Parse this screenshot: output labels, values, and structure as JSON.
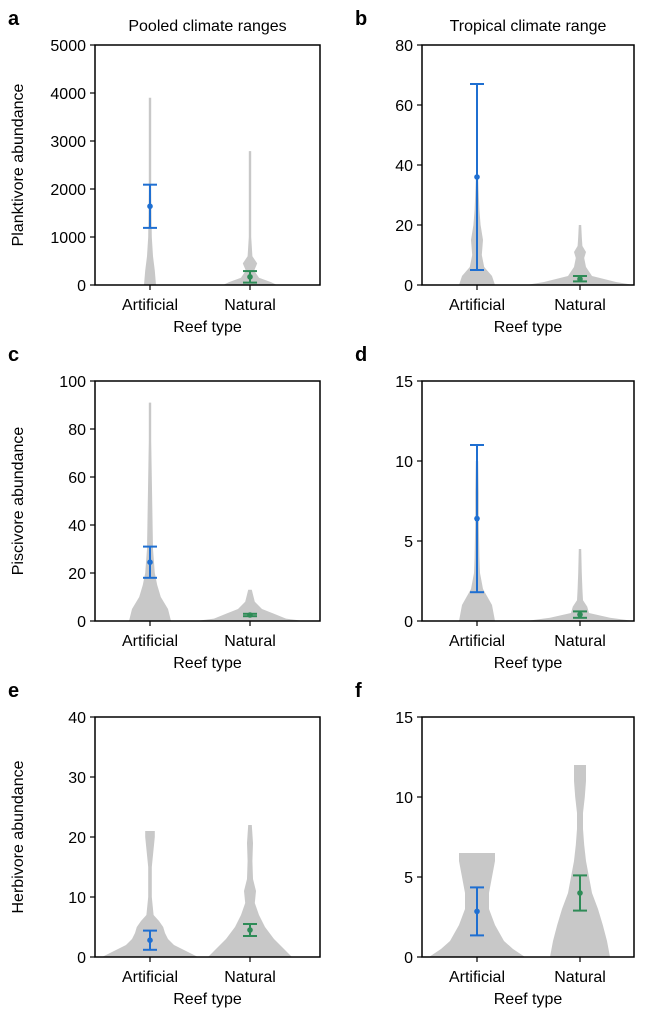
{
  "colors": {
    "artificial": "#1f6fd1",
    "natural": "#2e8b57",
    "violin": "#c8c8c8",
    "axis": "#000000"
  },
  "chart_data": [
    {
      "type": "violin",
      "panel_label": "a",
      "title": "Pooled climate ranges",
      "xlabel": "Reef type",
      "ylabel": "Planktivore abundance",
      "categories": [
        "Artificial",
        "Natural"
      ],
      "ylim": [
        0,
        5000
      ],
      "yticks": [
        "0",
        "1000",
        "2000",
        "3000",
        "4000",
        "5000"
      ],
      "ytick_values": [
        0,
        1000,
        2000,
        3000,
        4000,
        5000
      ],
      "series": [
        {
          "category": "Artificial",
          "color_key": "artificial",
          "mean": 1640,
          "ci_low": 1190,
          "ci_high": 2090,
          "max": 3900,
          "violin": [
            [
              0,
              0.1
            ],
            [
              300,
              0.08
            ],
            [
              600,
              0.05
            ],
            [
              1000,
              0.03
            ],
            [
              1500,
              0.025
            ],
            [
              2000,
              0.02
            ],
            [
              2500,
              0.02
            ],
            [
              3000,
              0.02
            ],
            [
              3500,
              0.02
            ],
            [
              3900,
              0.02
            ]
          ]
        },
        {
          "category": "Natural",
          "color_key": "natural",
          "mean": 170,
          "ci_low": 50,
          "ci_high": 290,
          "max": 2790,
          "violin": [
            [
              0,
              0.45
            ],
            [
              60,
              0.35
            ],
            [
              150,
              0.15
            ],
            [
              300,
              0.07
            ],
            [
              450,
              0.12
            ],
            [
              600,
              0.04
            ],
            [
              1000,
              0.02
            ],
            [
              2000,
              0.02
            ],
            [
              2790,
              0.02
            ]
          ]
        }
      ]
    },
    {
      "type": "violin",
      "panel_label": "b",
      "title": "Tropical climate range",
      "xlabel": "Reef type",
      "ylabel": "",
      "categories": [
        "Artificial",
        "Natural"
      ],
      "ylim": [
        0,
        80
      ],
      "yticks": [
        "0",
        "20",
        "40",
        "60",
        "80"
      ],
      "ytick_values": [
        0,
        20,
        40,
        60,
        80
      ],
      "series": [
        {
          "category": "Artificial",
          "color_key": "artificial",
          "mean": 36,
          "ci_low": 5,
          "ci_high": 67,
          "max": 35,
          "violin": [
            [
              0,
              0.3
            ],
            [
              3,
              0.25
            ],
            [
              6,
              0.12
            ],
            [
              10,
              0.08
            ],
            [
              15,
              0.1
            ],
            [
              20,
              0.06
            ],
            [
              25,
              0.04
            ],
            [
              30,
              0.03
            ],
            [
              35,
              0.02
            ]
          ]
        },
        {
          "category": "Natural",
          "color_key": "natural",
          "mean": 2,
          "ci_low": 1.2,
          "ci_high": 3,
          "max": 20,
          "violin": [
            [
              0,
              0.9
            ],
            [
              1,
              0.6
            ],
            [
              3,
              0.2
            ],
            [
              6,
              0.1
            ],
            [
              9,
              0.07
            ],
            [
              11,
              0.1
            ],
            [
              13,
              0.04
            ],
            [
              16,
              0.03
            ],
            [
              20,
              0.02
            ]
          ]
        }
      ]
    },
    {
      "type": "violin",
      "panel_label": "c",
      "title": "",
      "xlabel": "Reef type",
      "ylabel": "Piscivore abundance",
      "categories": [
        "Artificial",
        "Natural"
      ],
      "ylim": [
        0,
        100
      ],
      "yticks": [
        "0",
        "20",
        "40",
        "60",
        "80",
        "100"
      ],
      "ytick_values": [
        0,
        20,
        40,
        60,
        80,
        100
      ],
      "series": [
        {
          "category": "Artificial",
          "color_key": "artificial",
          "mean": 24.5,
          "ci_low": 18,
          "ci_high": 31,
          "max": 91,
          "violin": [
            [
              0,
              0.35
            ],
            [
              5,
              0.3
            ],
            [
              10,
              0.18
            ],
            [
              15,
              0.12
            ],
            [
              20,
              0.08
            ],
            [
              30,
              0.05
            ],
            [
              45,
              0.04
            ],
            [
              60,
              0.03
            ],
            [
              75,
              0.02
            ],
            [
              91,
              0.02
            ]
          ]
        },
        {
          "category": "Natural",
          "color_key": "natural",
          "mean": 2.5,
          "ci_low": 2,
          "ci_high": 3,
          "max": 13,
          "violin": [
            [
              0,
              0.9
            ],
            [
              1,
              0.6
            ],
            [
              3,
              0.4
            ],
            [
              5,
              0.2
            ],
            [
              8,
              0.08
            ],
            [
              11,
              0.05
            ],
            [
              13,
              0.03
            ]
          ]
        }
      ]
    },
    {
      "type": "violin",
      "panel_label": "d",
      "title": "",
      "xlabel": "Reef type",
      "ylabel": "",
      "categories": [
        "Artificial",
        "Natural"
      ],
      "ylim": [
        0,
        15
      ],
      "yticks": [
        "0",
        "5",
        "10",
        "15"
      ],
      "ytick_values": [
        0,
        5,
        10,
        15
      ],
      "series": [
        {
          "category": "Artificial",
          "color_key": "artificial",
          "mean": 6.4,
          "ci_low": 1.8,
          "ci_high": 11,
          "max": 10,
          "violin": [
            [
              0,
              0.3
            ],
            [
              1,
              0.25
            ],
            [
              2,
              0.1
            ],
            [
              3,
              0.05
            ],
            [
              4,
              0.04
            ],
            [
              6,
              0.03
            ],
            [
              8,
              0.03
            ],
            [
              10,
              0.02
            ]
          ]
        },
        {
          "category": "Natural",
          "color_key": "natural",
          "mean": 0.4,
          "ci_low": 0.2,
          "ci_high": 0.6,
          "max": 4.5,
          "violin": [
            [
              0,
              0.9
            ],
            [
              0.2,
              0.5
            ],
            [
              0.5,
              0.15
            ],
            [
              0.9,
              0.12
            ],
            [
              1.3,
              0.05
            ],
            [
              2,
              0.04
            ],
            [
              3,
              0.03
            ],
            [
              4.5,
              0.02
            ]
          ]
        }
      ]
    },
    {
      "type": "violin",
      "panel_label": "e",
      "title": "",
      "xlabel": "Reef type",
      "ylabel": "Herbivore abundance",
      "categories": [
        "Artificial",
        "Natural"
      ],
      "ylim": [
        0,
        40
      ],
      "yticks": [
        "0",
        "10",
        "20",
        "30",
        "40"
      ],
      "ytick_values": [
        0,
        10,
        20,
        30,
        40
      ],
      "series": [
        {
          "category": "Artificial",
          "color_key": "artificial",
          "mean": 2.8,
          "ci_low": 1.2,
          "ci_high": 4.4,
          "max": 21,
          "violin": [
            [
              0,
              0.8
            ],
            [
              1,
              0.6
            ],
            [
              2,
              0.4
            ],
            [
              3,
              0.3
            ],
            [
              4,
              0.25
            ],
            [
              5,
              0.22
            ],
            [
              6,
              0.15
            ],
            [
              7,
              0.06
            ],
            [
              10,
              0.03
            ],
            [
              15,
              0.03
            ],
            [
              20,
              0.08
            ],
            [
              21,
              0.08
            ]
          ]
        },
        {
          "category": "Natural",
          "color_key": "natural",
          "mean": 4.5,
          "ci_low": 3.5,
          "ci_high": 5.5,
          "max": 22,
          "violin": [
            [
              0,
              0.7
            ],
            [
              1,
              0.6
            ],
            [
              3,
              0.4
            ],
            [
              5,
              0.25
            ],
            [
              7,
              0.15
            ],
            [
              9,
              0.08
            ],
            [
              11,
              0.1
            ],
            [
              13,
              0.05
            ],
            [
              16,
              0.04
            ],
            [
              19,
              0.05
            ],
            [
              22,
              0.03
            ]
          ]
        }
      ]
    },
    {
      "type": "violin",
      "panel_label": "f",
      "title": "",
      "xlabel": "Reef type",
      "ylabel": "",
      "categories": [
        "Artificial",
        "Natural"
      ],
      "ylim": [
        0,
        15
      ],
      "yticks": [
        "0",
        "5",
        "10",
        "15"
      ],
      "ytick_values": [
        0,
        5,
        10,
        15
      ],
      "series": [
        {
          "category": "Artificial",
          "color_key": "artificial",
          "mean": 2.85,
          "ci_low": 1.35,
          "ci_high": 4.35,
          "max": 6.5,
          "violin": [
            [
              0,
              0.8
            ],
            [
              0.5,
              0.6
            ],
            [
              1,
              0.45
            ],
            [
              2,
              0.3
            ],
            [
              3,
              0.2
            ],
            [
              4,
              0.2
            ],
            [
              5,
              0.25
            ],
            [
              6,
              0.3
            ],
            [
              6.5,
              0.3
            ]
          ]
        },
        {
          "category": "Natural",
          "color_key": "natural",
          "mean": 4,
          "ci_low": 2.9,
          "ci_high": 5.1,
          "max": 12,
          "violin": [
            [
              0,
              0.5
            ],
            [
              1,
              0.45
            ],
            [
              2,
              0.38
            ],
            [
              3,
              0.3
            ],
            [
              4,
              0.2
            ],
            [
              5,
              0.15
            ],
            [
              6,
              0.1
            ],
            [
              7,
              0.07
            ],
            [
              8,
              0.05
            ],
            [
              9,
              0.05
            ],
            [
              10,
              0.08
            ],
            [
              11,
              0.1
            ],
            [
              12,
              0.1
            ]
          ]
        }
      ]
    }
  ]
}
